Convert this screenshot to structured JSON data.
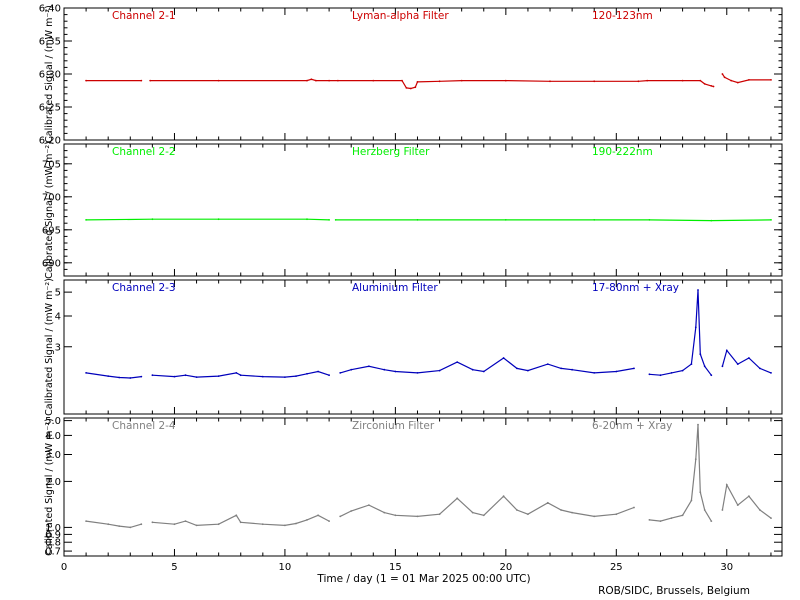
{
  "figure": {
    "xlabel": "Time / day (1 = 01 Mar 2025 00:00 UTC)",
    "credit": "ROB/SIDC, Brussels, Belgium"
  },
  "chart_data": [
    {
      "type": "line",
      "channel": "Channel 2-1",
      "filter": "Lyman-alpha Filter",
      "band": "120-123nm",
      "color": "#cc0000",
      "ylabel": "Calibrated Signal / (mW m⁻²)",
      "xlim": [
        0,
        32.5
      ],
      "ylim": [
        6.2,
        6.4
      ],
      "yscale": "linear",
      "yticks": [
        "6.20",
        "6.25",
        "6.30",
        "6.35",
        "6.40"
      ],
      "ytick_values": [
        6.2,
        6.25,
        6.3,
        6.35,
        6.4
      ],
      "xticks": [
        0,
        5,
        10,
        15,
        20,
        25,
        30
      ],
      "grid": false,
      "series": [
        {
          "x": [
            1.0,
            3.5,
            3.9,
            7.0,
            11.0,
            11.2,
            11.4,
            12.0,
            12.2,
            12.4,
            14.0,
            15.3,
            15.5,
            15.7,
            15.9,
            16.0,
            17.0,
            18.0,
            20.0,
            22.0,
            24.0,
            26.0,
            26.3,
            26.4,
            28.0,
            28.8,
            29.0,
            29.3,
            29.4,
            29.8,
            29.9,
            30.2,
            30.5,
            31.0,
            32.0
          ],
          "y": [
            6.29,
            6.29,
            6.29,
            6.29,
            6.29,
            6.292,
            6.29,
            6.29,
            6.288,
            6.29,
            6.29,
            6.29,
            6.279,
            6.278,
            6.28,
            6.288,
            6.289,
            6.29,
            6.29,
            6.289,
            6.289,
            6.289,
            6.29,
            6.29,
            6.29,
            6.29,
            6.285,
            6.282,
            6.281,
            6.3,
            6.295,
            6.29,
            6.287,
            6.291,
            6.291
          ],
          "breaks": [
            [
              3.6,
              3.85
            ],
            [
              12.0,
              12.3
            ],
            [
              26.25,
              26.4
            ],
            [
              29.45,
              29.75
            ]
          ]
        }
      ]
    },
    {
      "type": "line",
      "channel": "Channel 2-2",
      "filter": "Herzberg Filter",
      "band": "190-222nm",
      "color": "#00ee00",
      "ylabel": "Calibrated Signal / (mW m⁻²)",
      "xlim": [
        0,
        32.5
      ],
      "ylim": [
        688.0,
        708.0
      ],
      "yscale": "linear",
      "yticks": [
        "690",
        "695",
        "700",
        "705"
      ],
      "ytick_values": [
        690,
        695,
        700,
        705
      ],
      "xticks": [
        0,
        5,
        10,
        15,
        20,
        25,
        30
      ],
      "grid": false,
      "series": [
        {
          "x": [
            1.0,
            3.8,
            4.0,
            7.0,
            11.0,
            12.0,
            12.3,
            16.0,
            20.0,
            24.0,
            26.3,
            26.5,
            29.3,
            29.7,
            32.0
          ],
          "y": [
            696.5,
            696.5,
            696.6,
            696.6,
            696.6,
            696.5,
            696.5,
            696.5,
            696.5,
            696.5,
            696.5,
            696.5,
            696.4,
            696.5,
            696.5
          ],
          "breaks": [
            [
              3.6,
              3.85
            ],
            [
              12.0,
              12.3
            ],
            [
              26.25,
              26.4
            ],
            [
              29.45,
              29.75
            ]
          ]
        }
      ]
    },
    {
      "type": "line",
      "channel": "Channel 2-3",
      "filter": "Aluminium Filter",
      "band": "17-80nm + Xray",
      "color": "#0000bb",
      "ylabel": "Calibrated Signal / (mW m⁻²)",
      "xlim": [
        0,
        32.5
      ],
      "ylim": [
        1.6,
        5.6
      ],
      "yscale": "log",
      "yticks": [
        "3",
        "4",
        "5"
      ],
      "ytick_values": [
        3,
        4,
        5
      ],
      "xticks": [
        0,
        5,
        10,
        15,
        20,
        25,
        30
      ],
      "grid": false,
      "series": [
        {
          "x": [
            1.0,
            2.0,
            2.5,
            3.0,
            3.5,
            4.0,
            5.0,
            5.5,
            6.0,
            7.0,
            7.8,
            8.0,
            9.0,
            10.0,
            10.5,
            11.0,
            11.5,
            12.0,
            12.5,
            13.0,
            13.8,
            14.5,
            15.0,
            16.0,
            17.0,
            17.8,
            18.5,
            19.0,
            19.9,
            20.5,
            21.0,
            21.9,
            22.5,
            23.0,
            24.0,
            25.0,
            25.8,
            26.5,
            27.0,
            27.5,
            28.0,
            28.4,
            28.6,
            28.7,
            28.8,
            29.0,
            29.3,
            29.8,
            30.0,
            30.5,
            31.0,
            31.5,
            32.0
          ],
          "y": [
            2.35,
            2.28,
            2.25,
            2.24,
            2.27,
            2.3,
            2.27,
            2.3,
            2.26,
            2.28,
            2.35,
            2.3,
            2.27,
            2.26,
            2.28,
            2.33,
            2.38,
            2.3,
            2.35,
            2.42,
            2.5,
            2.42,
            2.38,
            2.35,
            2.4,
            2.6,
            2.42,
            2.38,
            2.7,
            2.45,
            2.4,
            2.55,
            2.45,
            2.42,
            2.35,
            2.38,
            2.45,
            2.32,
            2.3,
            2.35,
            2.4,
            2.55,
            3.6,
            5.1,
            2.8,
            2.5,
            2.3,
            2.5,
            2.9,
            2.55,
            2.7,
            2.45,
            2.35
          ],
          "breaks": [
            [
              3.6,
              3.85
            ],
            [
              12.0,
              12.3
            ],
            [
              26.25,
              26.4
            ],
            [
              29.45,
              29.75
            ]
          ]
        }
      ]
    },
    {
      "type": "line",
      "channel": "Channel 2-4",
      "filter": "Zirconium Filter",
      "band": "6-20nm + Xray",
      "color": "#808080",
      "ylabel": "Calibrated Signal / (mW m⁻²)",
      "xlim": [
        0,
        32.5
      ],
      "ylim": [
        0.65,
        5.2
      ],
      "yscale": "log",
      "yticks": [
        "0.7",
        "0.8",
        "0.9",
        "1.0",
        "2.0",
        "3.0",
        "4.0",
        "5.0"
      ],
      "ytick_values": [
        0.7,
        0.8,
        0.9,
        1.0,
        2.0,
        3.0,
        4.0,
        5.0
      ],
      "xticks": [
        0,
        5,
        10,
        15,
        20,
        25,
        30
      ],
      "grid": false,
      "series": [
        {
          "x": [
            1.0,
            2.0,
            2.5,
            3.0,
            3.5,
            4.0,
            5.0,
            5.5,
            6.0,
            7.0,
            7.8,
            8.0,
            9.0,
            10.0,
            10.5,
            11.0,
            11.5,
            12.0,
            12.5,
            13.0,
            13.8,
            14.5,
            15.0,
            16.0,
            17.0,
            17.8,
            18.5,
            19.0,
            19.9,
            20.5,
            21.0,
            21.9,
            22.5,
            23.0,
            24.0,
            25.0,
            25.8,
            26.5,
            27.0,
            27.5,
            28.0,
            28.4,
            28.6,
            28.7,
            28.8,
            29.0,
            29.3,
            29.8,
            30.0,
            30.5,
            31.0,
            31.5,
            32.0
          ],
          "y": [
            1.1,
            1.05,
            1.02,
            1.0,
            1.05,
            1.08,
            1.05,
            1.1,
            1.03,
            1.05,
            1.2,
            1.08,
            1.05,
            1.03,
            1.06,
            1.12,
            1.2,
            1.1,
            1.18,
            1.28,
            1.4,
            1.25,
            1.2,
            1.18,
            1.22,
            1.55,
            1.25,
            1.2,
            1.6,
            1.3,
            1.22,
            1.45,
            1.3,
            1.25,
            1.18,
            1.22,
            1.35,
            1.12,
            1.1,
            1.15,
            1.2,
            1.5,
            2.8,
            4.7,
            1.7,
            1.3,
            1.1,
            1.3,
            1.9,
            1.4,
            1.6,
            1.3,
            1.15
          ],
          "breaks": [
            [
              3.6,
              3.85
            ],
            [
              12.0,
              12.3
            ],
            [
              26.25,
              26.4
            ],
            [
              29.45,
              29.75
            ]
          ]
        }
      ]
    }
  ]
}
